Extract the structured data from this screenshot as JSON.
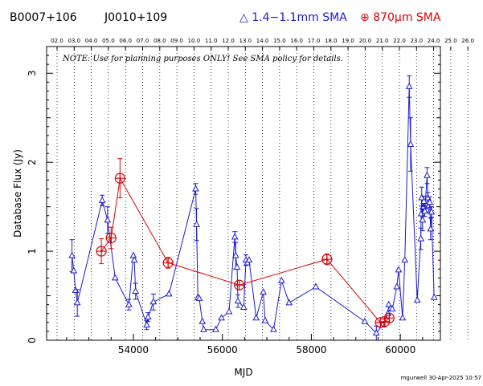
{
  "header": {
    "source_1": "B0007+106",
    "source_2": "J0010+109",
    "legend_blue": "1.4−1.1mm SMA",
    "legend_red": "870μm SMA",
    "legend_blue_marker": "triangle-icon",
    "legend_red_marker": "circled-plus-icon"
  },
  "footer": {
    "credit": "mgurwell 30-Apr-2025 10:57"
  },
  "colors": {
    "blue": "#1a1ad0",
    "red": "#dd0000",
    "axis": "#000000"
  },
  "chart_data": {
    "type": "scatter",
    "note": "NOTE: Use for planning purposes ONLY! See SMA policy for details.",
    "xlabel": "MJD",
    "ylabel": "Database Flux (Jy)",
    "xlim": [
      52050,
      60900
    ],
    "ylim": [
      0,
      3.3
    ],
    "x_ticks": [
      54000,
      56000,
      58000,
      60000
    ],
    "y_ticks": [
      0,
      1,
      2,
      3
    ],
    "top_axis_ticks": [
      "02.0",
      "03.0",
      "04.0",
      "05.0",
      "06.0",
      "07.0",
      "08.0",
      "09.0",
      "10.0",
      "11.0",
      "12.0",
      "13.0",
      "14.0",
      "15.0",
      "16.0",
      "17.0",
      "18.0",
      "19.0",
      "20.0",
      "21.0",
      "22.0",
      "23.0",
      "24.0",
      "25.0",
      "26.0"
    ],
    "grid": "vertical dotted lines at each top-axis year",
    "series": [
      {
        "name": "1.4−1.1mm SMA",
        "color": "#1a1ad0",
        "marker": "triangle",
        "points": [
          [
            52620,
            0.95,
            0.18
          ],
          [
            52660,
            0.78,
            0
          ],
          [
            52700,
            0.56,
            0
          ],
          [
            52740,
            0.42,
            0.15
          ],
          [
            53300,
            1.57,
            0.06
          ],
          [
            53420,
            1.35,
            0.15
          ],
          [
            53590,
            0.7,
            0
          ],
          [
            53900,
            0.4,
            0.06
          ],
          [
            54000,
            0.95,
            0
          ],
          [
            54020,
            0.9,
            0
          ],
          [
            54050,
            0.55,
            0.09
          ],
          [
            54300,
            0.17,
            0.05
          ],
          [
            54330,
            0.26,
            0.05
          ],
          [
            54450,
            0.43,
            0.09
          ],
          [
            54800,
            0.52,
            0
          ],
          [
            55400,
            1.7,
            0.06
          ],
          [
            55420,
            1.3,
            0.18
          ],
          [
            55450,
            0.48,
            0
          ],
          [
            55480,
            0.47,
            0
          ],
          [
            55550,
            0.21,
            0
          ],
          [
            55580,
            0.12,
            0
          ],
          [
            55850,
            0.12,
            0
          ],
          [
            55980,
            0.25,
            0
          ],
          [
            56150,
            0.32,
            0
          ],
          [
            56280,
            1.16,
            0.06
          ],
          [
            56300,
            0.95,
            0.15
          ],
          [
            56330,
            0.82,
            0
          ],
          [
            56350,
            0.44,
            0.07
          ],
          [
            56480,
            0.37,
            0
          ],
          [
            56530,
            0.9,
            0.06
          ],
          [
            56560,
            0.87,
            0
          ],
          [
            56600,
            0.9,
            0
          ],
          [
            56760,
            0.25,
            0
          ],
          [
            56920,
            0.54,
            0
          ],
          [
            56960,
            0.22,
            0
          ],
          [
            57150,
            0.12,
            0
          ],
          [
            57330,
            0.67,
            0
          ],
          [
            57500,
            0.42,
            0
          ],
          [
            58100,
            0.6,
            0
          ],
          [
            59200,
            0.21,
            0
          ],
          [
            59460,
            0.08,
            0.08
          ],
          [
            59600,
            0.17,
            0
          ],
          [
            59720,
            0.3,
            0
          ],
          [
            59740,
            0.4,
            0
          ],
          [
            59780,
            0.36,
            0
          ],
          [
            59820,
            0.35,
            0
          ],
          [
            59920,
            0.6,
            0
          ],
          [
            59960,
            0.79,
            0
          ],
          [
            60050,
            0.25,
            0
          ],
          [
            60100,
            0.9,
            0
          ],
          [
            60200,
            2.85,
            0.12
          ],
          [
            60230,
            2.2,
            0.3
          ],
          [
            60380,
            0.45,
            0
          ],
          [
            60460,
            1.14,
            0.12
          ],
          [
            60470,
            1.42,
            0.09
          ],
          [
            60480,
            1.6,
            0.12
          ],
          [
            60500,
            1.35,
            0.12
          ],
          [
            60520,
            1.5,
            0.06
          ],
          [
            60530,
            1.56,
            0.06
          ],
          [
            60550,
            1.45,
            0.06
          ],
          [
            60600,
            1.85,
            0.09
          ],
          [
            60620,
            1.6,
            0.06
          ],
          [
            60640,
            1.5,
            0.06
          ],
          [
            60660,
            1.55,
            0.06
          ],
          [
            60680,
            1.25,
            0.12
          ],
          [
            60700,
            1.44,
            0.06
          ],
          [
            60760,
            0.48,
            0
          ]
        ]
      },
      {
        "name": "870μm SMA",
        "color": "#dd0000",
        "marker": "circled-plus",
        "points": [
          [
            53280,
            1.0,
            0.14
          ],
          [
            53500,
            1.15,
            0.12
          ],
          [
            53700,
            1.82,
            0.22
          ],
          [
            54780,
            0.87,
            0.06
          ],
          [
            56380,
            0.62,
            0
          ],
          [
            58350,
            0.91,
            0.06
          ],
          [
            59550,
            0.2,
            0
          ],
          [
            59650,
            0.21,
            0
          ],
          [
            59750,
            0.25,
            0
          ]
        ]
      }
    ]
  }
}
